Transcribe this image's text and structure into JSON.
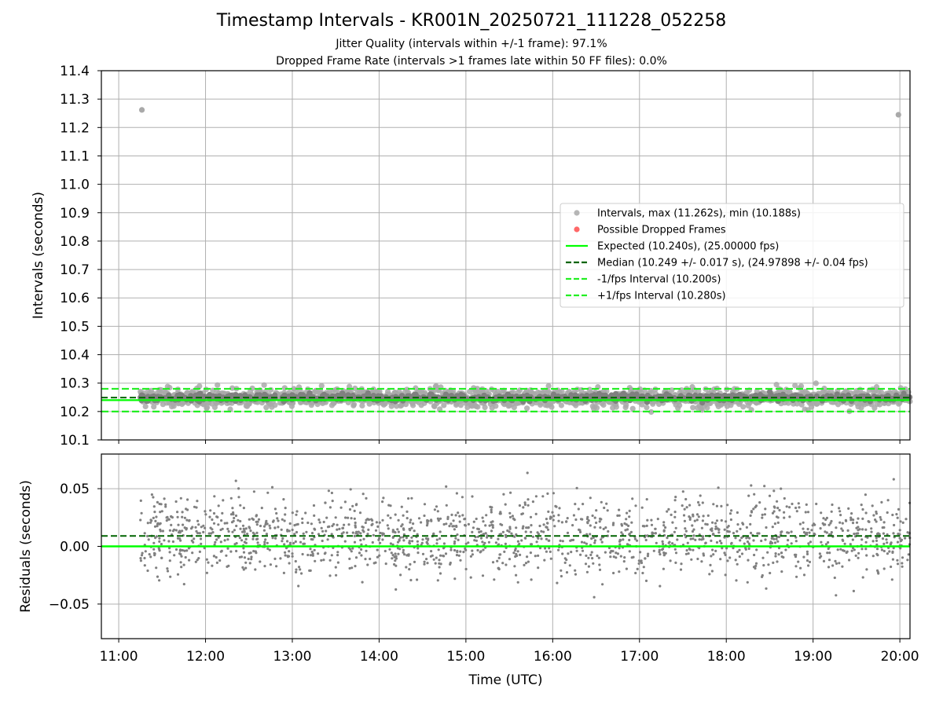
{
  "figure": {
    "title": "Timestamp Intervals - KR001N_20250721_111228_052258",
    "subtitle_1": "Jitter Quality (intervals within +/-1 frame): 97.1%",
    "subtitle_2": "Dropped Frame Rate (intervals >1 frames late within 50 FF files): 0.0%"
  },
  "colors": {
    "points": "#808080",
    "points_light": "#a9a9a9",
    "dropped": "#ff4d4d",
    "expected": "#00ff00",
    "median": "#006400",
    "bounds": "#22ee22",
    "grid": "#b0b0b0"
  },
  "chart_data": [
    {
      "type": "scatter",
      "xlabel": "",
      "ylabel": "Intervals (seconds)",
      "xlim": [
        "10:48",
        "20:07"
      ],
      "ylim": [
        10.1,
        11.4
      ],
      "x_ticks": [
        "11:00",
        "12:00",
        "13:00",
        "14:00",
        "15:00",
        "16:00",
        "17:00",
        "18:00",
        "19:00",
        "20:00"
      ],
      "y_ticks": [
        "10.1",
        "10.2",
        "10.3",
        "10.4",
        "10.5",
        "10.6",
        "10.7",
        "10.8",
        "10.9",
        "11.0",
        "11.1",
        "11.2",
        "11.3",
        "11.4"
      ],
      "grid": true,
      "legend_position": "center-right",
      "legend": [
        {
          "label": "Intervals, max (11.262s), min (10.188s)",
          "style": "marker",
          "color": "#a9a9a9"
        },
        {
          "label": "Possible Dropped Frames",
          "style": "marker",
          "color": "#ff4d4d"
        },
        {
          "label": "Expected (10.240s), (25.00000 fps)",
          "style": "solid",
          "color": "#00ff00"
        },
        {
          "label": "Median (10.249 +/- 0.017 s), (24.97898 +/- 0.04 fps)",
          "style": "dashed",
          "color": "#006400"
        },
        {
          "label": "-1/fps Interval (10.200s)",
          "style": "dashed",
          "color": "#22ee22"
        },
        {
          "label": "+1/fps Interval (10.280s)",
          "style": "dashed",
          "color": "#22ee22"
        }
      ],
      "reference_lines": {
        "expected": 10.24,
        "median": 10.249,
        "lower": 10.2,
        "upper": 10.28
      },
      "time_range": [
        "11:15",
        "20:07"
      ],
      "band": {
        "center": 10.249,
        "min": 10.188,
        "max": 10.3
      },
      "outliers": [
        {
          "x": "11:16",
          "y": 11.262
        },
        {
          "x": "19:59",
          "y": 11.245
        }
      ]
    },
    {
      "type": "scatter",
      "xlabel": "Time (UTC)",
      "ylabel": "Residuals (seconds)",
      "xlim": [
        "10:48",
        "20:07"
      ],
      "ylim": [
        -0.08,
        0.08
      ],
      "x_ticks": [
        "11:00",
        "12:00",
        "13:00",
        "14:00",
        "15:00",
        "16:00",
        "17:00",
        "18:00",
        "19:00",
        "20:00"
      ],
      "y_ticks": [
        "0.05",
        "0.00",
        "−0.05"
      ],
      "grid": true,
      "reference_lines": {
        "zero": 0.0,
        "median": 0.009
      },
      "residual_range": [
        -0.051,
        0.064
      ]
    }
  ]
}
